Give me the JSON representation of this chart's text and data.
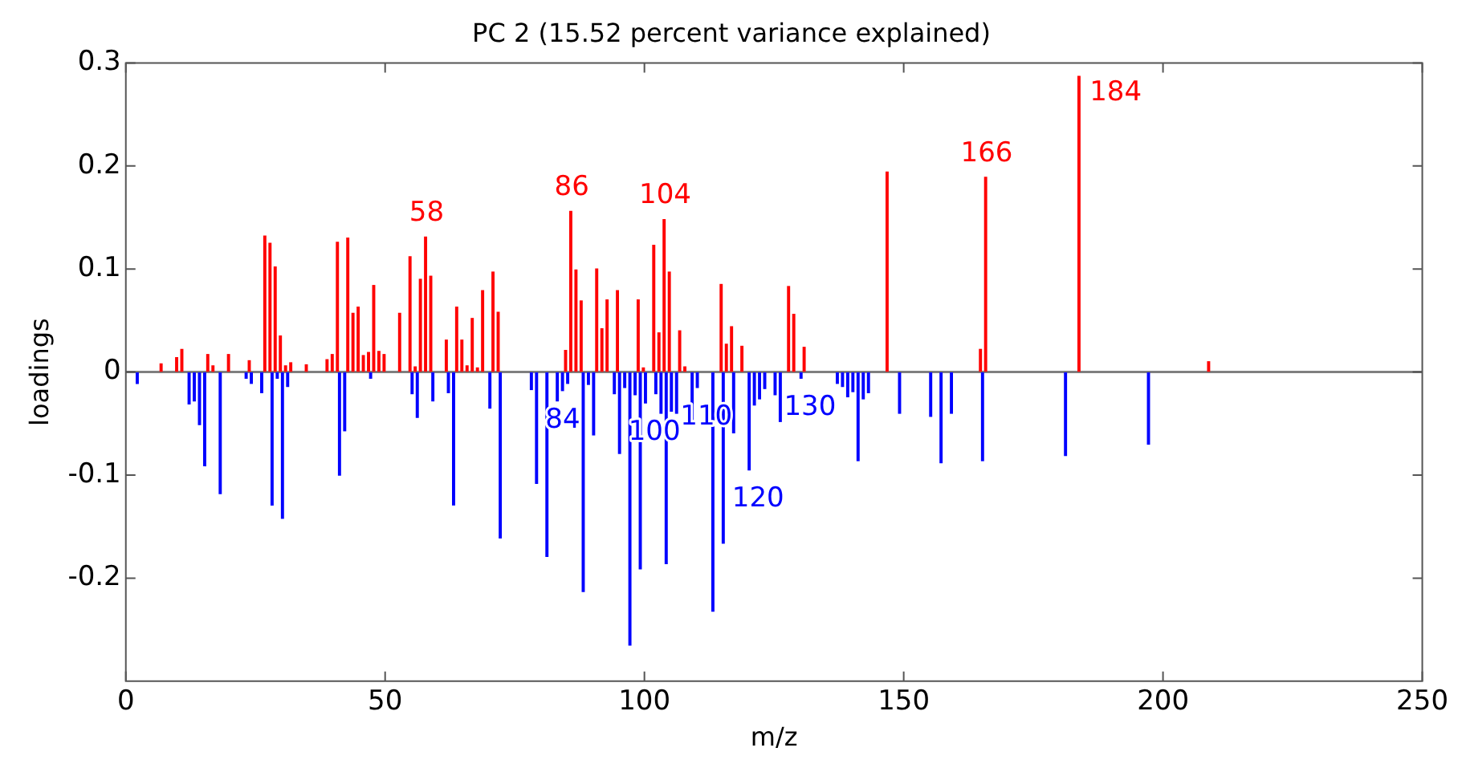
{
  "chart_data": {
    "type": "bar",
    "title": "PC 2 (15.52 percent variance explained)",
    "xlabel": "m/z",
    "ylabel": "loadings",
    "xlim": [
      0,
      250
    ],
    "xticks": [
      0,
      50,
      100,
      150,
      200,
      250
    ],
    "ylim": [
      -0.3,
      0.3
    ],
    "yticks": [
      -0.2,
      -0.1,
      0,
      0.1,
      0.2,
      0.3
    ],
    "grid": false,
    "legend": false,
    "ref_lines": [
      {
        "axis": "y",
        "value": 0,
        "color": "#7f7f7f"
      }
    ],
    "series": [
      {
        "color": "#ff0000",
        "x": [
          7,
          10,
          11,
          16,
          17,
          20,
          24,
          27,
          28,
          29,
          30,
          31,
          32,
          35,
          39,
          40,
          41,
          43,
          44,
          45,
          46,
          47,
          48,
          49,
          50,
          53,
          55,
          56,
          57,
          58,
          59,
          62,
          64,
          65,
          66,
          67,
          68,
          69,
          71,
          72,
          85,
          86,
          87,
          88,
          91,
          92,
          93,
          95,
          99,
          100,
          102,
          103,
          104,
          105,
          107,
          108,
          115,
          116,
          117,
          119,
          128,
          129,
          131,
          147,
          165,
          166,
          184,
          209
        ],
        "values": [
          0.008,
          0.014,
          0.022,
          0.017,
          0.006,
          0.017,
          0.011,
          0.132,
          0.125,
          0.102,
          0.035,
          0.006,
          0.009,
          0.007,
          0.012,
          0.017,
          0.126,
          0.13,
          0.057,
          0.063,
          0.016,
          0.019,
          0.084,
          0.02,
          0.017,
          0.057,
          0.112,
          0.005,
          0.09,
          0.131,
          0.093,
          0.031,
          0.063,
          0.031,
          0.006,
          0.052,
          0.004,
          0.079,
          0.097,
          0.058,
          0.021,
          0.156,
          0.099,
          0.069,
          0.1,
          0.042,
          0.07,
          0.079,
          0.07,
          0.004,
          0.123,
          0.038,
          0.148,
          0.097,
          0.04,
          0.005,
          0.085,
          0.027,
          0.044,
          0.025,
          0.083,
          0.056,
          0.024,
          0.194,
          0.022,
          0.189,
          0.287,
          0.01
        ]
      },
      {
        "color": "#0000ff",
        "x": [
          2,
          12,
          13,
          14,
          15,
          18,
          23,
          24,
          26,
          28,
          29,
          30,
          31,
          41,
          42,
          47,
          55,
          56,
          59,
          62,
          63,
          70,
          72,
          78,
          79,
          81,
          83,
          84,
          85,
          88,
          89,
          90,
          94,
          95,
          96,
          97,
          98,
          99,
          100,
          102,
          103,
          104,
          105,
          106,
          109,
          110,
          113,
          115,
          117,
          120,
          121,
          122,
          123,
          125,
          126,
          130,
          137,
          138,
          139,
          140,
          141,
          142,
          143,
          149,
          155,
          157,
          159,
          165,
          181,
          197
        ],
        "values": [
          -0.011,
          -0.031,
          -0.028,
          -0.051,
          -0.091,
          -0.118,
          -0.006,
          -0.011,
          -0.02,
          -0.129,
          -0.006,
          -0.142,
          -0.014,
          -0.1,
          -0.057,
          -0.006,
          -0.021,
          -0.044,
          -0.028,
          -0.02,
          -0.129,
          -0.035,
          -0.161,
          -0.017,
          -0.108,
          -0.179,
          -0.028,
          -0.018,
          -0.011,
          -0.213,
          -0.012,
          -0.061,
          -0.021,
          -0.079,
          -0.015,
          -0.265,
          -0.022,
          -0.191,
          -0.03,
          -0.021,
          -0.04,
          -0.186,
          -0.038,
          -0.04,
          -0.049,
          -0.015,
          -0.232,
          -0.166,
          -0.059,
          -0.095,
          -0.032,
          -0.026,
          -0.016,
          -0.022,
          -0.048,
          -0.006,
          -0.011,
          -0.014,
          -0.024,
          -0.019,
          -0.086,
          -0.026,
          -0.02,
          -0.04,
          -0.043,
          -0.088,
          -0.04,
          -0.086,
          -0.081,
          -0.07
        ]
      }
    ],
    "annotations": [
      {
        "text": "58",
        "x": 58,
        "y": 0.131
      },
      {
        "text": "86",
        "x": 86,
        "y": 0.156
      },
      {
        "text": "104",
        "x": 104,
        "y": 0.148
      },
      {
        "text": "166",
        "x": 166,
        "y": 0.189
      },
      {
        "text": "184",
        "x": 184,
        "y": 0.287
      },
      {
        "text": "84",
        "x": 84,
        "y": -0.018
      },
      {
        "text": "100",
        "x": 100,
        "y": -0.03
      },
      {
        "text": "110",
        "x": 110,
        "y": -0.015
      },
      {
        "text": "120",
        "x": 120,
        "y": -0.095
      },
      {
        "text": "130",
        "x": 130,
        "y": -0.006
      }
    ]
  }
}
